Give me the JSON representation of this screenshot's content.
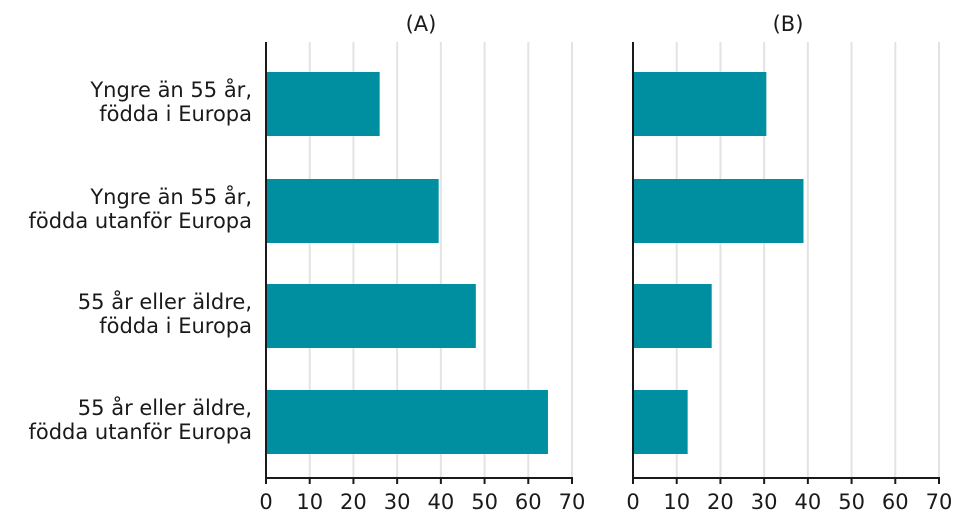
{
  "chart_data": {
    "type": "bar",
    "orientation": "horizontal",
    "categories": [
      [
        "Yngre än 55 år,",
        "födda i Europa"
      ],
      [
        "Yngre än 55 år,",
        "födda utanför Europa"
      ],
      [
        "55 år eller äldre,",
        "födda i Europa"
      ],
      [
        "55 år eller äldre,",
        "födda utanför Europa"
      ]
    ],
    "panels": [
      {
        "title": "(A)",
        "values": [
          26,
          39.5,
          48,
          64.5
        ]
      },
      {
        "title": "(B)",
        "values": [
          30.5,
          39,
          18,
          12.5
        ]
      }
    ],
    "xlim": [
      0,
      70
    ],
    "xticks": [
      0,
      10,
      20,
      30,
      40,
      50,
      60,
      70
    ],
    "grid": true,
    "bar_color": "#008fa0",
    "grid_color": "#e3e3e3",
    "axis_color": "#1a1a1a"
  }
}
